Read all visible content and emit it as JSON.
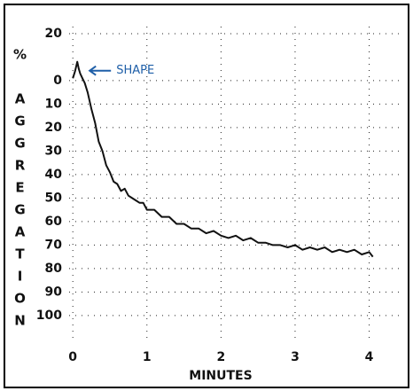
{
  "chart_data": {
    "type": "line",
    "x_label": "MINUTES",
    "y_label": "% AGGREGATION",
    "annotation": "SHAPE",
    "y_inverted": true,
    "grid": true,
    "xlim": [
      -0.05,
      4.4
    ],
    "xticks": [
      0,
      1,
      2,
      3,
      4
    ],
    "ylim": [
      -23,
      111
    ],
    "yticks": [
      {
        "value": -20,
        "label": "20"
      },
      0,
      10,
      20,
      30,
      40,
      50,
      60,
      70,
      80,
      90,
      100
    ],
    "x": [
      0,
      0.03,
      0.06,
      0.08,
      0.1,
      0.13,
      0.16,
      0.2,
      0.25,
      0.3,
      0.35,
      0.4,
      0.45,
      0.5,
      0.55,
      0.6,
      0.65,
      0.7,
      0.75,
      0.8,
      0.85,
      0.9,
      0.95,
      1.0,
      1.1,
      1.2,
      1.3,
      1.4,
      1.5,
      1.6,
      1.7,
      1.8,
      1.9,
      2.0,
      2.1,
      2.2,
      2.3,
      2.4,
      2.5,
      2.6,
      2.7,
      2.8,
      2.9,
      3.0,
      3.1,
      3.2,
      3.3,
      3.4,
      3.5,
      3.6,
      3.7,
      3.8,
      3.9,
      4.0,
      4.05
    ],
    "values": [
      -1,
      -4,
      -8,
      -5,
      -3,
      -1,
      1,
      5,
      12,
      18,
      26,
      30,
      36,
      39,
      43,
      44,
      47,
      46,
      49,
      50,
      51,
      52,
      52,
      55,
      55,
      58,
      58,
      61,
      61,
      63,
      63,
      65,
      64,
      66,
      67,
      66,
      68,
      67,
      69,
      69,
      70,
      70,
      71,
      70,
      72,
      71,
      72,
      71,
      73,
      72,
      73,
      72,
      74,
      73,
      75
    ],
    "color": "#111111",
    "annotation_color": "#1f5fa8"
  }
}
